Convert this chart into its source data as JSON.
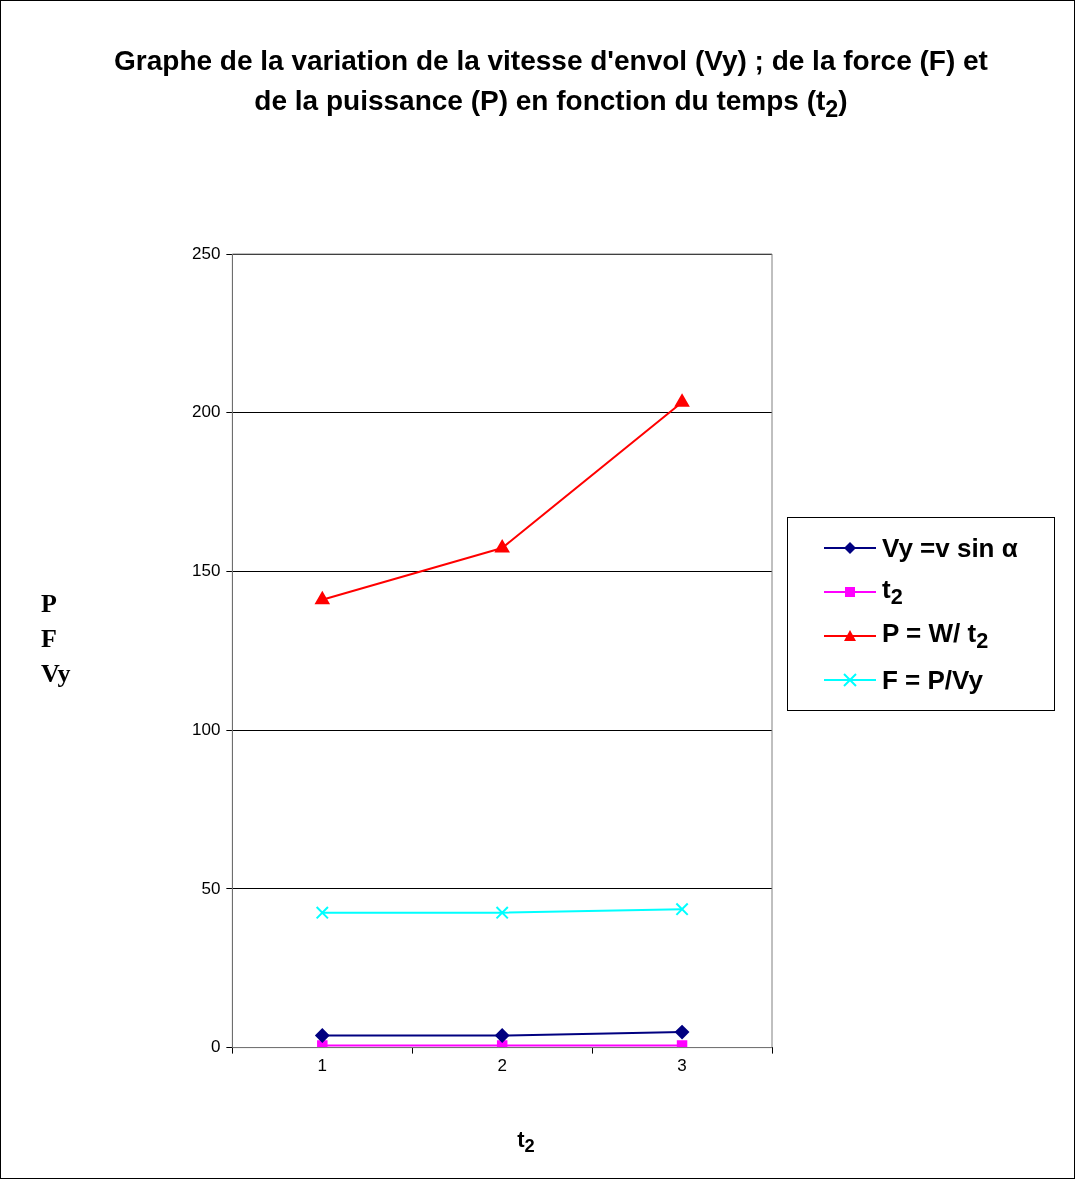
{
  "chart_data": {
    "type": "line",
    "title": "Graphe de la variation de la vitesse d'envol (Vy) ; de la force (F) et de la puissance (P) en fonction du temps (t$_{2}$)",
    "xlabel": "t$_{2}$",
    "ylabel": "P\nF\nVy",
    "categories": [
      "1",
      "2",
      "3"
    ],
    "series": [
      {
        "name": "Vy =v sin α",
        "color": "#000080",
        "marker": "diamond",
        "values": [
          3.8,
          3.8,
          4.9
        ]
      },
      {
        "name": "t$_{2}$",
        "color": "#ff00ff",
        "marker": "square",
        "values": [
          0.7,
          0.7,
          0.7
        ]
      },
      {
        "name": "P = W/ t$_{2}$",
        "color": "#ff0000",
        "marker": "triangle",
        "values": [
          141.1,
          157.4,
          203.3
        ]
      },
      {
        "name": "F = P/Vy",
        "color": "#00ffff",
        "marker": "cross",
        "values": [
          42.5,
          42.5,
          43.6
        ]
      }
    ],
    "ylim": [
      0,
      250
    ],
    "yticks": [
      0,
      50,
      100,
      150,
      200,
      250
    ],
    "grid": "y",
    "legend": "right"
  }
}
